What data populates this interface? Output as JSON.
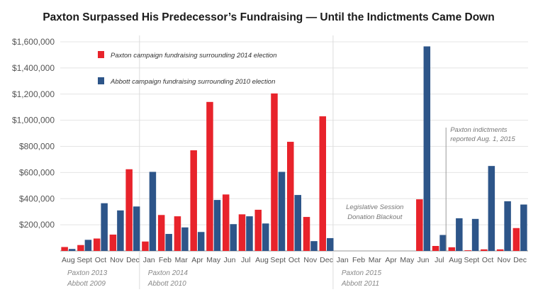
{
  "chart_data": {
    "type": "bar",
    "title": "Paxton Surpassed His Predecessor’s Fundraising — Until the Indictments Came Down",
    "xlabel": "",
    "ylabel": "",
    "ylim": [
      0,
      1600000
    ],
    "yticks": [
      200000,
      400000,
      600000,
      800000,
      1000000,
      1200000,
      1400000,
      1600000
    ],
    "ytick_labels": [
      "$200,000",
      "$400,000",
      "$600,000",
      "$800,000",
      "$1,000,000",
      "$1,200,000",
      "$1,400,000",
      "$1,600,000"
    ],
    "grid": true,
    "legend_position": "top-left",
    "categories": [
      "Aug",
      "Sept",
      "Oct",
      "Nov",
      "Dec",
      "Jan",
      "Feb",
      "Mar",
      "Apr",
      "May",
      "Jun",
      "Jul",
      "Aug",
      "Sept",
      "Oct",
      "Nov",
      "Dec",
      "Jan",
      "Feb",
      "Mar",
      "Apr",
      "May",
      "Jun",
      "Jul",
      "Aug",
      "Sept",
      "Oct",
      "Nov",
      "Dec"
    ],
    "series": [
      {
        "name": "Paxton campaign fundraising surrounding 2014 election",
        "color": "#e8232b",
        "values": [
          30000,
          45000,
          95000,
          125000,
          625000,
          72000,
          275000,
          265000,
          770000,
          1140000,
          432000,
          280000,
          315000,
          1205000,
          835000,
          260000,
          1030000,
          0,
          0,
          0,
          0,
          0,
          395000,
          38000,
          28000,
          5000,
          12000,
          12000,
          175000
        ]
      },
      {
        "name": "Abbott campaign fundraising surrounding 2010 election",
        "color": "#2d5589",
        "values": [
          15000,
          85000,
          365000,
          310000,
          340000,
          605000,
          130000,
          180000,
          145000,
          390000,
          205000,
          265000,
          210000,
          605000,
          428000,
          75000,
          98000,
          0,
          0,
          0,
          0,
          0,
          1565000,
          122000,
          250000,
          245000,
          650000,
          380000,
          355000
        ]
      }
    ],
    "period_labels": [
      {
        "line1": "Paxton 2013",
        "line2": "Abbott 2009",
        "start_index": 0
      },
      {
        "line1": "Paxton 2014",
        "line2": "Abbott 2010",
        "start_index": 5
      },
      {
        "line1": "Paxton 2015",
        "line2": "Abbott 2011",
        "start_index": 17
      }
    ],
    "annotations": [
      {
        "id": "blackout",
        "lines": [
          "Legislative Session",
          "Donation Blackout"
        ],
        "category_index": 19
      },
      {
        "id": "indictments",
        "lines": [
          "Paxton indictments",
          "reported Aug. 1, 2015"
        ],
        "category_index": 24
      }
    ]
  }
}
